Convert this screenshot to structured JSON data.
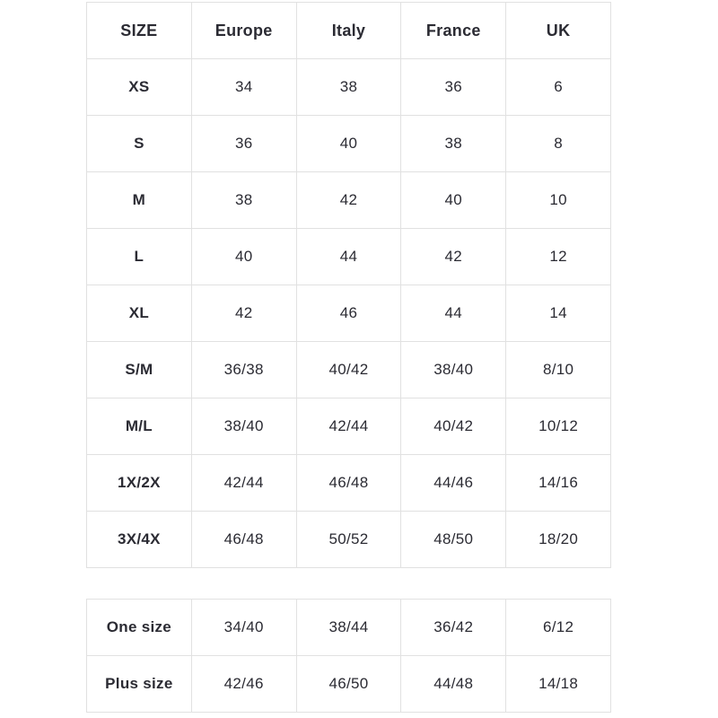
{
  "colors": {
    "background": "#ffffff",
    "border": "#e1e1e1",
    "text": "#2b2b33"
  },
  "chart_data": [
    {
      "type": "table",
      "columns": [
        "SIZE",
        "Europe",
        "Italy",
        "France",
        "UK"
      ],
      "rows": [
        [
          "XS",
          "34",
          "38",
          "36",
          "6"
        ],
        [
          "S",
          "36",
          "40",
          "38",
          "8"
        ],
        [
          "M",
          "38",
          "42",
          "40",
          "10"
        ],
        [
          "L",
          "40",
          "44",
          "42",
          "12"
        ],
        [
          "XL",
          "42",
          "46",
          "44",
          "14"
        ],
        [
          "S/M",
          "36/38",
          "40/42",
          "38/40",
          "8/10"
        ],
        [
          "M/L",
          "38/40",
          "42/44",
          "40/42",
          "10/12"
        ],
        [
          "1X/2X",
          "42/44",
          "46/48",
          "44/46",
          "14/16"
        ],
        [
          "3X/4X",
          "46/48",
          "50/52",
          "48/50",
          "18/20"
        ]
      ],
      "layout": {
        "grid": true,
        "header_row": true,
        "bold_first_column": true
      }
    },
    {
      "type": "table",
      "columns": [],
      "rows": [
        [
          "One size",
          "34/40",
          "38/44",
          "36/42",
          "6/12"
        ],
        [
          "Plus size",
          "42/46",
          "46/50",
          "44/48",
          "14/18"
        ]
      ],
      "layout": {
        "grid": true,
        "header_row": false,
        "bold_first_column": true
      }
    }
  ]
}
